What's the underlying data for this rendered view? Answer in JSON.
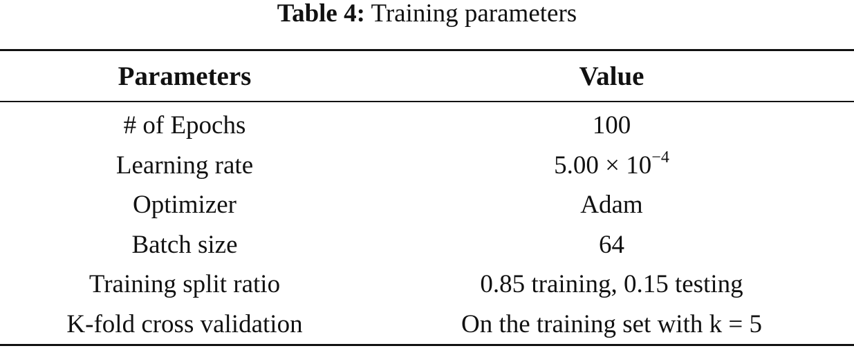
{
  "caption": {
    "label": "Table 4:",
    "text": "Training parameters"
  },
  "table": {
    "headers": [
      "Parameters",
      "Value"
    ],
    "rows": [
      {
        "parameter": "# of Epochs",
        "value": "100"
      },
      {
        "parameter": "Learning rate",
        "value_base": "5.00 × 10",
        "value_exponent": "−4"
      },
      {
        "parameter": "Optimizer",
        "value": "Adam"
      },
      {
        "parameter": "Batch size",
        "value": "64"
      },
      {
        "parameter": "Training split ratio",
        "value": "0.85 training, 0.15 testing"
      },
      {
        "parameter": "K-fold cross validation",
        "value": "On the training set with k = 5"
      }
    ]
  }
}
